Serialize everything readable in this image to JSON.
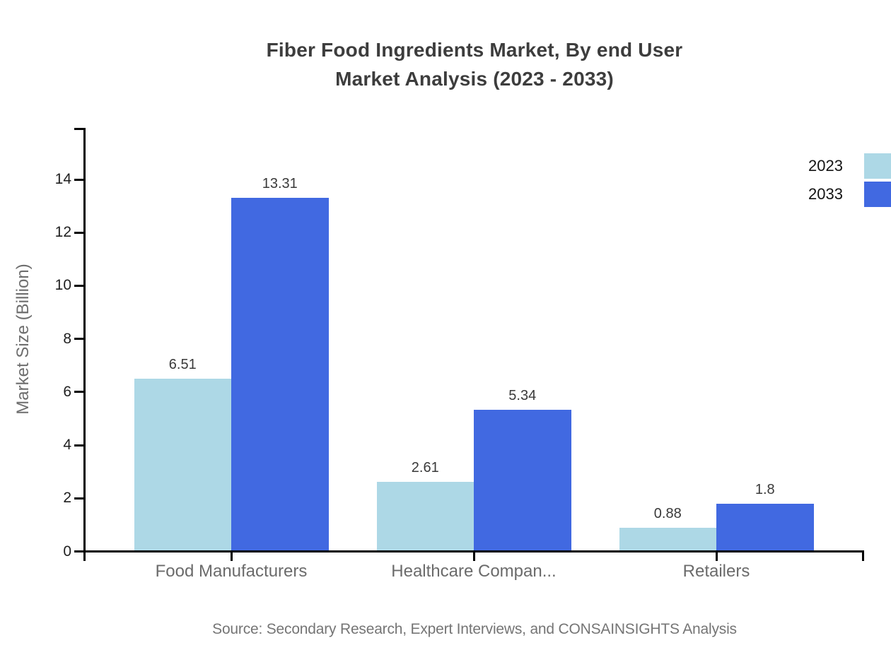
{
  "title": {
    "line1": "Fiber Food Ingredients Market, By end User",
    "line2": "Market Analysis (2023 - 2033)"
  },
  "source": "Source: Secondary Research, Expert Interviews, and CONSAINSIGHTS Analysis",
  "legend": {
    "items": [
      {
        "label": "2023",
        "color": "#ADD8E6"
      },
      {
        "label": "2033",
        "color": "#4169E1"
      }
    ]
  },
  "colors": {
    "series_2023": "#ADD8E6",
    "series_2033": "#4169E1",
    "axis": "#000000",
    "tick_label": "#1f1f1f",
    "category_label": "#6b6b6b",
    "value_label": "#3a3a3a",
    "title": "#3d3d3d",
    "axis_title": "#6e6e6e",
    "source": "#757575"
  },
  "chart_data": {
    "type": "bar",
    "title": "Fiber Food Ingredients Market, By end User Market Analysis (2023 - 2033)",
    "categories": [
      "Food Manufacturers",
      "Healthcare Compan...",
      "Retailers"
    ],
    "series": [
      {
        "name": "2023",
        "color": "#ADD8E6",
        "values": [
          6.51,
          2.61,
          0.88
        ]
      },
      {
        "name": "2033",
        "color": "#4169E1",
        "values": [
          13.31,
          5.34,
          1.8
        ]
      }
    ],
    "xlabel": "",
    "ylabel": "Market Size (Billion)",
    "ylim": [
      0,
      16
    ],
    "yticks": [
      0,
      2,
      4,
      6,
      8,
      10,
      12,
      14
    ],
    "grid": false,
    "legend_position": "top-right",
    "value_labels_shown": true
  }
}
